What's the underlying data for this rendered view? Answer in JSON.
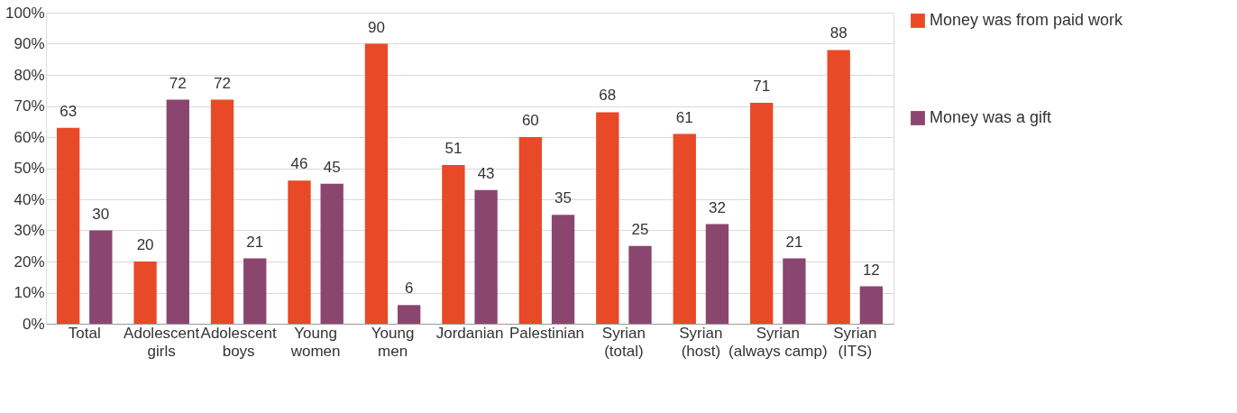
{
  "chart_data": {
    "type": "bar",
    "categories": [
      "Total",
      "Adolescent girls",
      "Adolescent boys",
      "Young women",
      "Young men",
      "Jordanian",
      "Palestinian",
      "Syrian (total)",
      "Syrian (host)",
      "Syrian (always camp)",
      "Syrian (ITS)"
    ],
    "series": [
      {
        "name": "Money was from paid work",
        "color": "#e84a27",
        "values": [
          63,
          20,
          72,
          46,
          90,
          51,
          60,
          68,
          61,
          71,
          88
        ]
      },
      {
        "name": "Money was a gift",
        "color": "#8b4670",
        "values": [
          30,
          72,
          21,
          45,
          6,
          43,
          35,
          25,
          32,
          21,
          12
        ]
      }
    ],
    "ylim": [
      0,
      100
    ],
    "yticks": [
      {
        "value": 0,
        "label": "0%"
      },
      {
        "value": 10,
        "label": "10%"
      },
      {
        "value": 20,
        "label": "20%"
      },
      {
        "value": 30,
        "label": "30%"
      },
      {
        "value": 40,
        "label": "40%"
      },
      {
        "value": 50,
        "label": "50%"
      },
      {
        "value": 60,
        "label": "60%"
      },
      {
        "value": 70,
        "label": "70%"
      },
      {
        "value": 80,
        "label": "80%"
      },
      {
        "value": 90,
        "label": "90%"
      },
      {
        "value": 100,
        "label": "100%"
      }
    ],
    "grid": "y",
    "legend": "top right",
    "data_labels": true
  }
}
